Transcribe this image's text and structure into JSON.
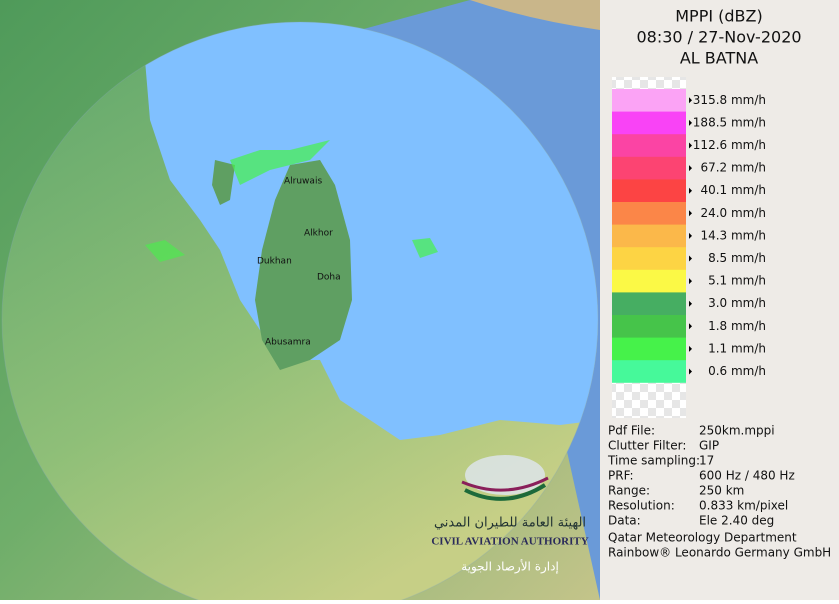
{
  "header": {
    "lines": [
      "MPPI (dBZ)",
      "08:30 / 27-Nov-2020",
      "AL BATNA"
    ]
  },
  "legend": [
    {
      "label": "315.8 mm/h",
      "color": "#fba3f5"
    },
    {
      "label": "188.5 mm/h",
      "color": "#f943f6"
    },
    {
      "label": "112.6 mm/h",
      "color": "#fb44a4"
    },
    {
      "label": "67.2 mm/h",
      "color": "#fc4472"
    },
    {
      "label": "40.1 mm/h",
      "color": "#fc4444"
    },
    {
      "label": "24.0 mm/h",
      "color": "#fb8648"
    },
    {
      "label": "14.3 mm/h",
      "color": "#fbb84a"
    },
    {
      "label": "8.5 mm/h",
      "color": "#fdd444"
    },
    {
      "label": "5.1 mm/h",
      "color": "#fbf946"
    },
    {
      "label": "3.0 mm/h",
      "color": "#46ae62"
    },
    {
      "label": "1.8 mm/h",
      "color": "#46c44a"
    },
    {
      "label": "1.1 mm/h",
      "color": "#46f24a"
    },
    {
      "label": "0.6 mm/h",
      "color": "#46f99a"
    }
  ],
  "info": [
    {
      "key": "Pdf File:",
      "value": "250km.mppi"
    },
    {
      "key": "Clutter Filter:",
      "value": "GIP"
    },
    {
      "key": "Time sampling:",
      "value": "17"
    },
    {
      "key": "PRF:",
      "value": "600 Hz / 480 Hz"
    },
    {
      "key": "Range:",
      "value": "250 km"
    },
    {
      "key": "Resolution:",
      "value": "0.833 km/pixel"
    },
    {
      "key": "Data:",
      "value": "Ele 2.40 deg"
    }
  ],
  "credits": [
    "Qatar Meteorology Department",
    "Rainbow® Leonardo Germany GmbH"
  ],
  "places": [
    "Alruwais",
    "Alkhor",
    "Dukhan",
    "Doha",
    "Abusamra"
  ],
  "logo": {
    "arabic": "الهيئة العامة للطيران المدني",
    "english": "CIVIL AVIATION AUTHORITY",
    "sub": "إدارة الأرصاد الجوية"
  }
}
